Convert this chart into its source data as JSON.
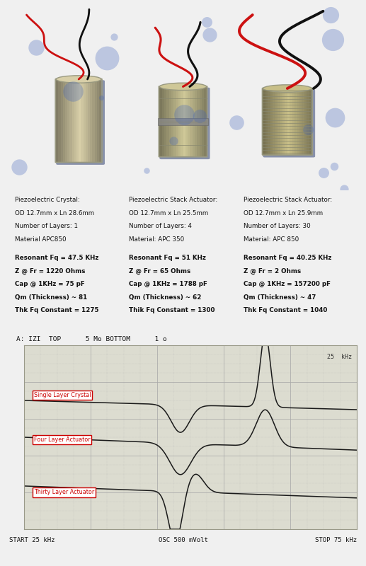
{
  "photo_bg_color": "#3a5faa",
  "bg_color": "#f0f0f0",
  "col1_title": "Piezoelectric Crystal:",
  "col1_lines": [
    "OD 12.7mm x Ln 28.6mm",
    "Number of Layers: 1",
    "Material APC850"
  ],
  "col1_bold": [
    "Resonant Fq = 47.5 KHz",
    "Z @ Fr = 1220 Ohms",
    "Cap @ 1KHz = 75 pF",
    "Qm (Thickness) ~ 81",
    "Thk Fq Constant = 1275"
  ],
  "col2_title": "Piezoelectric Stack Actuator:",
  "col2_lines": [
    "OD 12.7mm x Ln 25.5mm",
    "Number of Layers: 4",
    "Material: APC 350"
  ],
  "col2_bold": [
    "Resonant Fq = 51 KHz",
    "Z @ Fr = 65 Ohms",
    "Cap @ 1KHz = 1788 pF",
    "Qm (Thickness) ~ 62",
    "Thik Fq Constant = 1300"
  ],
  "col3_title": "Piezoelectric Stack Actuator:",
  "col3_lines": [
    "OD 12.7mm x Ln 25.9mm",
    "Number of Layers: 30",
    "Material: APC 850"
  ],
  "col3_bold": [
    "Resonant Fq = 40.25 KHz",
    "Z @ Fr = 2 Ohms",
    "Cap @ 1KHz = 157200 pF",
    "Qm (Thickness) ~ 47",
    "Thk Fq Constant = 1040"
  ],
  "graph_header": "A: IZI  TOP      5 Mo BOTTOM      1 o",
  "graph_top_right": "25  kHz",
  "graph_bottom_left": "START 25 kHz",
  "graph_bottom_center": "OSC 500 mVolt",
  "graph_bottom_right": "STOP 75 kHz",
  "label1": "Single Layer Crystal",
  "label2": "Four Layer Actuator",
  "label3": "Thirty Layer Actuator",
  "graph_bg": "#dcdcd0",
  "graph_line_color": "#1a1a1a",
  "label_box_color": "#cc0000",
  "label_text_color": "#cc0000",
  "grid_color": "#aaaaaa",
  "cylinder_color": "#d4c898",
  "cylinder_edge": "#999980",
  "wire_red": "#cc1111",
  "wire_black": "#111111"
}
